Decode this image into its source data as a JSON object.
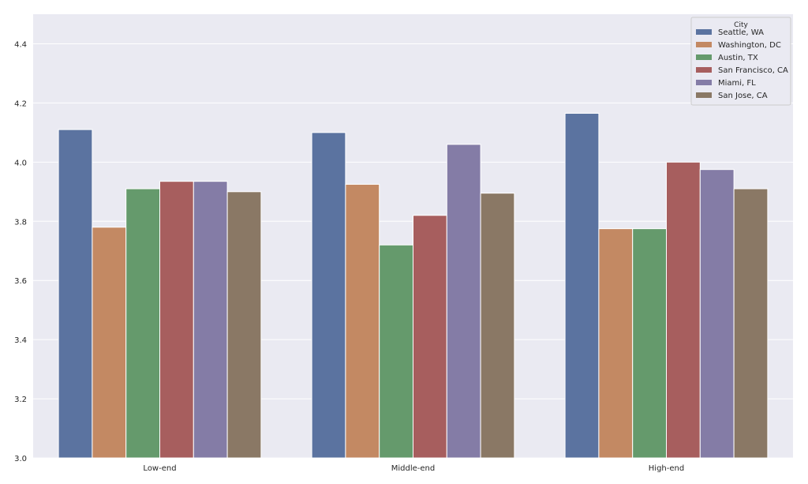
{
  "chart_data": {
    "type": "bar",
    "title": "",
    "xlabel": "",
    "ylabel": "",
    "categories": [
      "Low-end",
      "Middle-end",
      "High-end"
    ],
    "ylim": [
      3.0,
      4.5
    ],
    "yticks": [
      3.0,
      3.2,
      3.4,
      3.6,
      3.8,
      4.0,
      4.2,
      4.4
    ],
    "ytick_labels": [
      "3.0",
      "3.2",
      "3.4",
      "3.6",
      "3.8",
      "4.0",
      "4.2",
      "4.4"
    ],
    "grid": true,
    "legend": {
      "title": "City",
      "placement": "top-right"
    },
    "series": [
      {
        "name": "Seattle, WA",
        "color": "#5b73a0",
        "values": [
          4.11,
          4.1,
          4.165
        ]
      },
      {
        "name": "Washington, DC",
        "color": "#c38963",
        "values": [
          3.78,
          3.925,
          3.775
        ]
      },
      {
        "name": "Austin, TX",
        "color": "#659a6c",
        "values": [
          3.91,
          3.72,
          3.775
        ]
      },
      {
        "name": "San Francisco, CA",
        "color": "#a75e5e",
        "values": [
          3.935,
          3.82,
          4.0
        ]
      },
      {
        "name": "Miami, FL",
        "color": "#847ca6",
        "values": [
          3.935,
          4.06,
          3.975
        ]
      },
      {
        "name": "San Jose, CA",
        "color": "#8a7865",
        "values": [
          3.9,
          3.895,
          3.91
        ]
      }
    ]
  }
}
